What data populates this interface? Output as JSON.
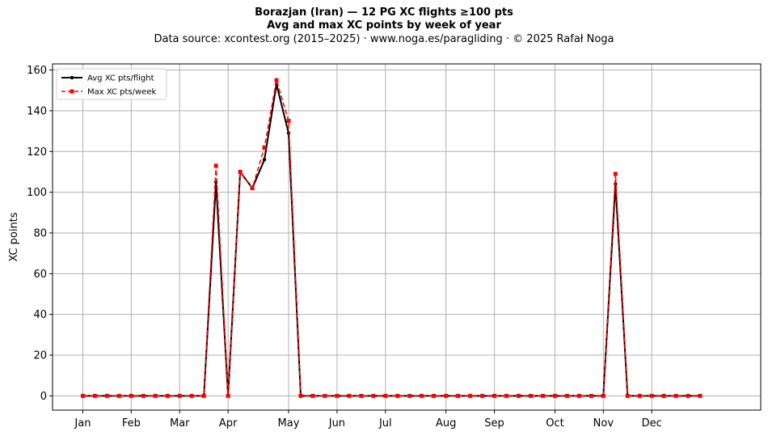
{
  "chart_data": {
    "type": "line",
    "title": "Borazjan (Iran)  —  12 PG XC flights ≥100 pts",
    "subtitle": "Avg and max XC points by week of year",
    "source_line": "Data source: xcontest.org (2015–2025)  ·  www.noga.es/paragliding  ·  © 2025 Rafał Noga",
    "xlabel": "",
    "ylabel": "XC points",
    "ylim": [
      -7,
      163
    ],
    "xlim": [
      -2.5,
      56
    ],
    "yticks": [
      0,
      20,
      40,
      60,
      80,
      100,
      120,
      140,
      160
    ],
    "xticks": [
      {
        "label": "Jan",
        "week": 0
      },
      {
        "label": "Feb",
        "week": 4
      },
      {
        "label": "Mar",
        "week": 8
      },
      {
        "label": "Apr",
        "week": 12
      },
      {
        "label": "May",
        "week": 17
      },
      {
        "label": "Jun",
        "week": 21
      },
      {
        "label": "Jul",
        "week": 25
      },
      {
        "label": "Aug",
        "week": 30
      },
      {
        "label": "Sep",
        "week": 34
      },
      {
        "label": "Oct",
        "week": 39
      },
      {
        "label": "Nov",
        "week": 43
      },
      {
        "label": "Dec",
        "week": 47
      }
    ],
    "grid": true,
    "legend_position": "top-left",
    "x": [
      0,
      1,
      2,
      3,
      4,
      5,
      6,
      7,
      8,
      9,
      10,
      11,
      12,
      13,
      14,
      15,
      16,
      17,
      18,
      19,
      20,
      21,
      22,
      23,
      24,
      25,
      26,
      27,
      28,
      29,
      30,
      31,
      32,
      33,
      34,
      35,
      36,
      37,
      38,
      39,
      40,
      41,
      42,
      43,
      44,
      45,
      46,
      47,
      48,
      49,
      50,
      51
    ],
    "series": [
      {
        "name": "Avg XC pts/flight",
        "color": "#000000",
        "style": "solid-circle",
        "values": [
          0,
          0,
          0,
          0,
          0,
          0,
          0,
          0,
          0,
          0,
          0,
          105,
          0,
          110,
          102,
          116,
          153,
          129,
          0,
          0,
          0,
          0,
          0,
          0,
          0,
          0,
          0,
          0,
          0,
          0,
          0,
          0,
          0,
          0,
          0,
          0,
          0,
          0,
          0,
          0,
          0,
          0,
          0,
          0,
          104,
          0,
          0,
          0,
          0,
          0,
          0,
          0
        ]
      },
      {
        "name": "Max XC pts/week",
        "color": "#ff0000",
        "style": "dashed-square",
        "values": [
          0,
          0,
          0,
          0,
          0,
          0,
          0,
          0,
          0,
          0,
          0,
          113,
          0,
          110,
          102,
          122,
          155,
          135,
          0,
          0,
          0,
          0,
          0,
          0,
          0,
          0,
          0,
          0,
          0,
          0,
          0,
          0,
          0,
          0,
          0,
          0,
          0,
          0,
          0,
          0,
          0,
          0,
          0,
          0,
          109,
          0,
          0,
          0,
          0,
          0,
          0,
          0
        ]
      }
    ]
  }
}
